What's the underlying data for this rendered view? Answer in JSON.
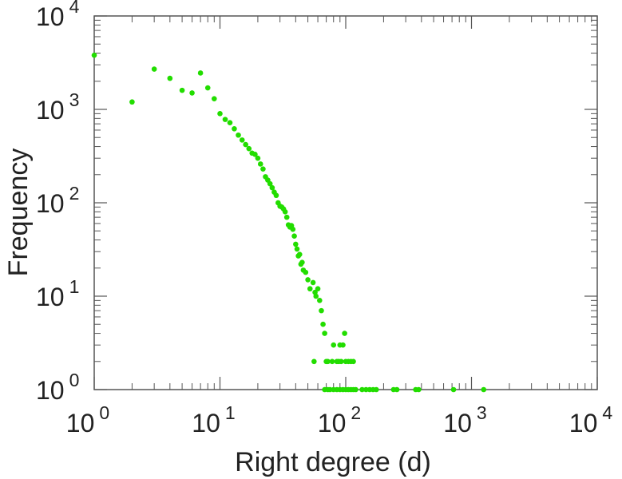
{
  "chart_data": {
    "type": "scatter",
    "title": "",
    "xlabel": "Right degree (d)",
    "ylabel": "Frequency",
    "x_scale": "log",
    "y_scale": "log",
    "xlim": [
      1,
      10000
    ],
    "ylim": [
      1,
      10000
    ],
    "grid": false,
    "legend": "none",
    "marker_color": "#22dd00",
    "x_ticks": [
      {
        "base": "10",
        "exp": "0"
      },
      {
        "base": "10",
        "exp": "1"
      },
      {
        "base": "10",
        "exp": "2"
      },
      {
        "base": "10",
        "exp": "3"
      },
      {
        "base": "10",
        "exp": "4"
      }
    ],
    "y_ticks": [
      {
        "base": "10",
        "exp": "0"
      },
      {
        "base": "10",
        "exp": "1"
      },
      {
        "base": "10",
        "exp": "2"
      },
      {
        "base": "10",
        "exp": "3"
      },
      {
        "base": "10",
        "exp": "4"
      }
    ],
    "points": [
      [
        1,
        3800
      ],
      [
        2,
        1200
      ],
      [
        3,
        2700
      ],
      [
        4,
        2150
      ],
      [
        5,
        1600
      ],
      [
        6,
        1500
      ],
      [
        7,
        2450
      ],
      [
        8,
        1700
      ],
      [
        9,
        1300
      ],
      [
        10,
        900
      ],
      [
        11,
        780
      ],
      [
        12,
        720
      ],
      [
        13,
        620
      ],
      [
        14,
        530
      ],
      [
        15,
        470
      ],
      [
        16,
        420
      ],
      [
        17,
        380
      ],
      [
        18,
        340
      ],
      [
        19,
        330
      ],
      [
        20,
        300
      ],
      [
        21,
        260
      ],
      [
        22,
        230
      ],
      [
        23,
        190
      ],
      [
        24,
        175
      ],
      [
        25,
        160
      ],
      [
        26,
        145
      ],
      [
        27,
        130
      ],
      [
        28,
        120
      ],
      [
        29,
        100
      ],
      [
        30,
        92
      ],
      [
        31,
        90
      ],
      [
        32,
        86
      ],
      [
        33,
        80
      ],
      [
        34,
        70
      ],
      [
        35,
        58
      ],
      [
        36,
        55
      ],
      [
        37,
        57
      ],
      [
        38,
        52
      ],
      [
        39,
        44
      ],
      [
        40,
        36
      ],
      [
        41,
        32
      ],
      [
        42,
        27
      ],
      [
        43,
        28
      ],
      [
        44,
        22
      ],
      [
        45,
        23
      ],
      [
        46,
        19
      ],
      [
        48,
        18
      ],
      [
        50,
        15
      ],
      [
        52,
        12
      ],
      [
        55,
        14
      ],
      [
        57,
        11
      ],
      [
        58,
        10
      ],
      [
        60,
        12
      ],
      [
        62,
        9
      ],
      [
        64,
        7
      ],
      [
        66,
        5
      ],
      [
        68,
        4
      ],
      [
        56,
        2
      ],
      [
        70,
        2
      ],
      [
        72,
        2
      ],
      [
        78,
        2
      ],
      [
        80,
        3
      ],
      [
        85,
        2
      ],
      [
        88,
        2
      ],
      [
        90,
        3
      ],
      [
        92,
        2
      ],
      [
        95,
        3
      ],
      [
        98,
        4
      ],
      [
        100,
        2
      ],
      [
        105,
        2
      ],
      [
        110,
        2
      ],
      [
        115,
        2
      ],
      [
        68,
        1
      ],
      [
        72,
        1
      ],
      [
        75,
        1
      ],
      [
        80,
        1
      ],
      [
        85,
        1
      ],
      [
        90,
        1
      ],
      [
        95,
        1
      ],
      [
        100,
        1
      ],
      [
        105,
        1
      ],
      [
        110,
        1
      ],
      [
        115,
        1
      ],
      [
        120,
        1
      ],
      [
        135,
        1
      ],
      [
        145,
        1
      ],
      [
        155,
        1
      ],
      [
        165,
        1
      ],
      [
        175,
        1
      ],
      [
        240,
        1
      ],
      [
        255,
        1
      ],
      [
        360,
        1
      ],
      [
        380,
        1
      ],
      [
        720,
        1
      ],
      [
        1250,
        1
      ]
    ]
  }
}
